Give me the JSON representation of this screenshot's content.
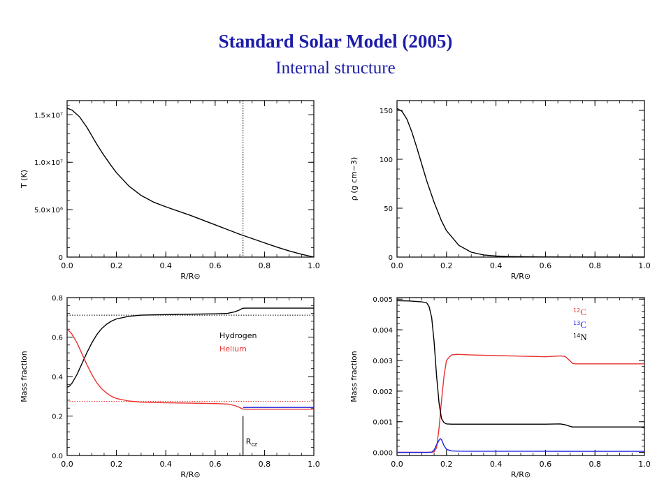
{
  "page": {
    "title": "Standard Solar Model (2005)",
    "subtitle": "Internal structure"
  },
  "colors": {
    "title": "#1c1ca8",
    "hydrogen": "#000000",
    "helium": "#e8312f",
    "c12": "#e8312f",
    "c13": "#2020e0",
    "n14": "#000000",
    "axis": "#000000"
  },
  "chart_data": [
    {
      "type": "line",
      "xlabel": "R/R⊙",
      "ylabel": "T (K)",
      "xlim": [
        0,
        1
      ],
      "ylim": [
        0,
        16500000
      ],
      "xticks": [
        0,
        0.2,
        0.4,
        0.6,
        0.8,
        1.0
      ],
      "xtick_labels": [
        "0.0",
        "0.2",
        "0.4",
        "0.6",
        "0.8",
        "1.0"
      ],
      "yticks": [
        0,
        5000000,
        10000000,
        15000000
      ],
      "ytick_labels": [
        "0",
        "5.0×10⁶",
        "1.0×10⁷",
        "1.5×10⁷"
      ],
      "vline_x": 0.713,
      "series": [
        {
          "color": "#000000",
          "x": [
            0,
            0.02,
            0.05,
            0.08,
            0.1,
            0.12,
            0.15,
            0.18,
            0.2,
            0.25,
            0.3,
            0.35,
            0.4,
            0.5,
            0.6,
            0.65,
            0.7,
            0.75,
            0.8,
            0.85,
            0.9,
            0.95,
            1.0
          ],
          "y": [
            15700000,
            15500000,
            14800000,
            13700000,
            12800000,
            11900000,
            10700000,
            9600000,
            8900000,
            7500000,
            6500000,
            5800000,
            5300000,
            4400000,
            3400000,
            2900000,
            2400000,
            1950000,
            1500000,
            1050000,
            650000,
            300000,
            0
          ]
        }
      ]
    },
    {
      "type": "line",
      "xlabel": "R/R⊙",
      "ylabel": "ρ (g cm−3)",
      "xlim": [
        0,
        1
      ],
      "ylim": [
        0,
        160
      ],
      "xticks": [
        0,
        0.2,
        0.4,
        0.6,
        0.8,
        1.0
      ],
      "xtick_labels": [
        "0.0",
        "0.2",
        "0.4",
        "0.6",
        "0.8",
        "1.0"
      ],
      "yticks": [
        0,
        50,
        100,
        150
      ],
      "ytick_labels": [
        "0",
        "50",
        "100",
        "150"
      ],
      "series": [
        {
          "color": "#000000",
          "x": [
            0,
            0.02,
            0.04,
            0.06,
            0.08,
            0.1,
            0.12,
            0.15,
            0.18,
            0.2,
            0.25,
            0.3,
            0.35,
            0.4,
            0.45,
            0.5,
            0.6,
            0.8,
            1.0
          ],
          "y": [
            152,
            149,
            141,
            128,
            112,
            95,
            78,
            56,
            37,
            27,
            12,
            5,
            2.2,
            1.1,
            0.6,
            0.35,
            0.15,
            0.05,
            0
          ]
        }
      ]
    },
    {
      "type": "line",
      "xlabel": "R/R⊙",
      "ylabel": "Mass fraction",
      "xlim": [
        0,
        1
      ],
      "ylim": [
        0,
        0.8
      ],
      "xticks": [
        0,
        0.2,
        0.4,
        0.6,
        0.8,
        1.0
      ],
      "xtick_labels": [
        "0.0",
        "0.2",
        "0.4",
        "0.6",
        "0.8",
        "1.0"
      ],
      "yticks": [
        0,
        0.2,
        0.4,
        0.6,
        0.8
      ],
      "ytick_labels": [
        "0.0",
        "0.2",
        "0.4",
        "0.6",
        "0.8"
      ],
      "hlines": [
        {
          "y": 0.711,
          "color": "#000000"
        },
        {
          "y": 0.274,
          "color": "#e8312f"
        }
      ],
      "marker": {
        "x": 0.713,
        "y_from": 0.0,
        "y_to": 0.2,
        "label": "R",
        "label_sub": "cz"
      },
      "legend": {
        "position": "middle-right",
        "entries": [
          {
            "label": "Hydrogen",
            "color": "#000000"
          },
          {
            "label": "Helium",
            "color": "#e8312f"
          }
        ]
      },
      "series": [
        {
          "name": "Hydrogen",
          "color": "#000000",
          "x": [
            0,
            0.01,
            0.02,
            0.04,
            0.06,
            0.08,
            0.1,
            0.12,
            0.14,
            0.16,
            0.18,
            0.2,
            0.25,
            0.3,
            0.4,
            0.5,
            0.6,
            0.65,
            0.68,
            0.7,
            0.71,
            0.72,
            0.8,
            0.9,
            1.0
          ],
          "y": [
            0.346,
            0.352,
            0.367,
            0.41,
            0.465,
            0.52,
            0.57,
            0.612,
            0.643,
            0.665,
            0.681,
            0.692,
            0.705,
            0.711,
            0.714,
            0.716,
            0.718,
            0.72,
            0.728,
            0.738,
            0.745,
            0.7467,
            0.7467,
            0.7467,
            0.7467
          ]
        },
        {
          "name": "Helium",
          "color": "#e8312f",
          "x": [
            0,
            0.01,
            0.02,
            0.04,
            0.06,
            0.08,
            0.1,
            0.12,
            0.14,
            0.16,
            0.18,
            0.2,
            0.25,
            0.3,
            0.4,
            0.5,
            0.6,
            0.65,
            0.68,
            0.7,
            0.71,
            0.72,
            0.8,
            0.9,
            1.0
          ],
          "y": [
            0.635,
            0.629,
            0.614,
            0.571,
            0.516,
            0.461,
            0.411,
            0.369,
            0.338,
            0.316,
            0.3,
            0.289,
            0.276,
            0.27,
            0.267,
            0.265,
            0.263,
            0.261,
            0.253,
            0.243,
            0.236,
            0.2347,
            0.2347,
            0.2347,
            0.2347
          ]
        },
        {
          "name": "",
          "color": "#2020e0",
          "x": [
            0.713,
            0.8,
            0.9,
            1.0
          ],
          "y": [
            0.2435,
            0.2435,
            0.2435,
            0.2435
          ]
        }
      ]
    },
    {
      "type": "line",
      "xlabel": "R/R⊙",
      "ylabel": "Mass fraction",
      "xlim": [
        0,
        1
      ],
      "ylim": [
        -0.0001,
        0.00505
      ],
      "xticks": [
        0,
        0.2,
        0.4,
        0.6,
        0.8,
        1.0
      ],
      "xtick_labels": [
        "0.0",
        "0.2",
        "0.4",
        "0.6",
        "0.8",
        "1.0"
      ],
      "yticks": [
        0,
        0.001,
        0.002,
        0.003,
        0.004,
        0.005
      ],
      "ytick_labels": [
        "0.000",
        "0.001",
        "0.002",
        "0.003",
        "0.004",
        "0.005"
      ],
      "legend": {
        "position": "top-right",
        "entries": [
          {
            "label": "C",
            "sup": "12",
            "color": "#e8312f"
          },
          {
            "label": "C",
            "sup": "13",
            "color": "#2020e0"
          },
          {
            "label": "N",
            "sup": "14",
            "color": "#000000"
          }
        ]
      },
      "series": [
        {
          "name": "12C",
          "color": "#e8312f",
          "x": [
            0,
            0.1,
            0.14,
            0.15,
            0.16,
            0.17,
            0.18,
            0.19,
            0.2,
            0.21,
            0.22,
            0.24,
            0.3,
            0.4,
            0.5,
            0.6,
            0.66,
            0.68,
            0.7,
            0.71,
            0.72,
            0.8,
            0.9,
            1.0
          ],
          "y": [
            1.5e-06,
            1.5e-06,
            5e-06,
            2e-05,
            0.00015,
            0.0008,
            0.0017,
            0.0025,
            0.003,
            0.0031,
            0.00318,
            0.0032,
            0.00318,
            0.00316,
            0.00314,
            0.00312,
            0.00315,
            0.00313,
            0.00298,
            0.0029,
            0.00289,
            0.00289,
            0.00289,
            0.00289
          ]
        },
        {
          "name": "13C",
          "color": "#2020e0",
          "x": [
            0,
            0.12,
            0.14,
            0.15,
            0.16,
            0.17,
            0.175,
            0.18,
            0.19,
            0.2,
            0.22,
            0.25,
            0.3,
            0.5,
            0.7,
            0.72,
            1.0
          ],
          "y": [
            3e-07,
            3e-07,
            1e-05,
            8e-05,
            0.00025,
            0.0004,
            0.00045,
            0.00042,
            0.00022,
            0.0001,
            5e-05,
            4.2e-05,
            4e-05,
            3.8e-05,
            3.6e-05,
            3.5e-05,
            3.5e-05
          ]
        },
        {
          "name": "14N",
          "color": "#000000",
          "x": [
            0,
            0.05,
            0.1,
            0.12,
            0.13,
            0.14,
            0.15,
            0.16,
            0.17,
            0.18,
            0.19,
            0.2,
            0.22,
            0.25,
            0.3,
            0.5,
            0.6,
            0.66,
            0.68,
            0.7,
            0.71,
            0.72,
            0.8,
            0.9,
            1.0
          ],
          "y": [
            0.00495,
            0.00494,
            0.00491,
            0.00488,
            0.00475,
            0.0044,
            0.0036,
            0.0025,
            0.0016,
            0.0011,
            0.00097,
            0.00093,
            0.00092,
            0.00092,
            0.00092,
            0.00092,
            0.00092,
            0.00093,
            0.0009,
            0.00085,
            0.00083,
            0.00083,
            0.00083,
            0.00083,
            0.00083
          ]
        }
      ]
    }
  ]
}
